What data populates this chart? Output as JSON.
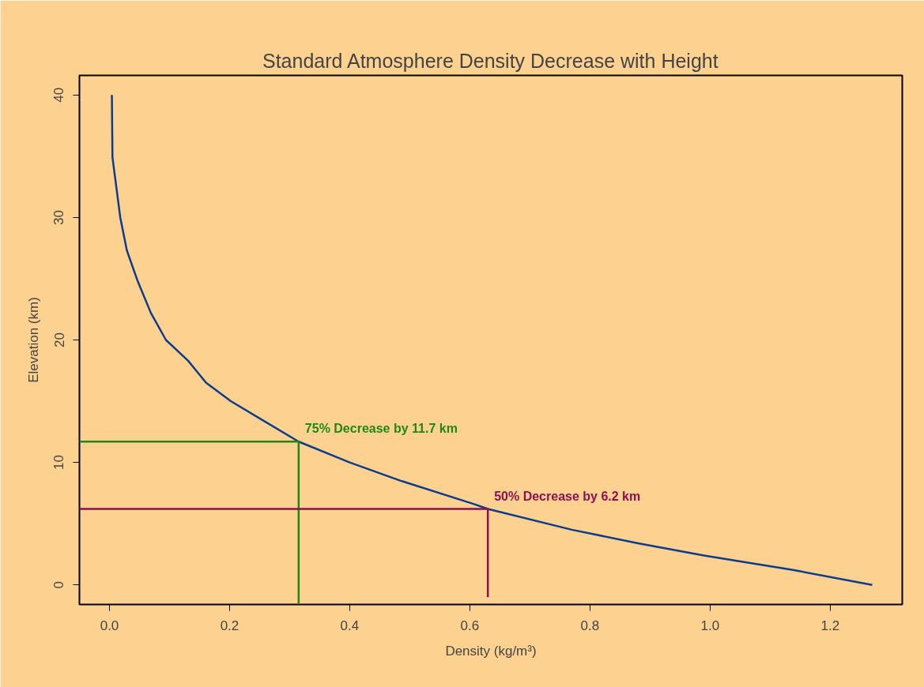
{
  "chart_data": {
    "type": "line",
    "title": "Standard Atmosphere Density Decrease with Height",
    "xlabel": "Density (kg/m³)",
    "ylabel": "Elevation (km)",
    "xlim": [
      -0.05,
      1.32
    ],
    "ylim": [
      -1.6,
      41.6
    ],
    "xticks": [
      {
        "value": 0,
        "label": "0.0"
      },
      0.2,
      0.4,
      0.6,
      0.8,
      {
        "value": 1,
        "label": "1.0"
      },
      1.2
    ],
    "yticks": [
      0,
      10,
      20,
      30,
      40
    ],
    "series": [
      {
        "color": "#0b3d8c",
        "x": [
          1.27,
          1.14,
          0.99,
          0.88,
          0.77,
          0.63,
          0.607,
          0.485,
          0.4,
          0.315,
          0.26,
          0.202,
          0.161,
          0.131,
          0.094,
          0.069,
          0.047,
          0.029,
          0.018,
          0.005,
          0.004
        ],
        "values": [
          0,
          1.2,
          2.4,
          3.4,
          4.5,
          6.2,
          6.6,
          8.5,
          10,
          11.7,
          13.3,
          15,
          16.5,
          18.3,
          20,
          22.2,
          24.8,
          27.3,
          30,
          34.9,
          40
        ]
      },
      {
        "color": "#1e8a14",
        "x": [
          -0.05,
          0.315,
          0.315
        ],
        "values": [
          11.7,
          11.7,
          -1.6
        ]
      },
      {
        "color": "#8b1150",
        "x": [
          -0.05,
          0.63,
          0.63
        ],
        "values": [
          6.2,
          6.2,
          -1.0
        ]
      }
    ],
    "annotations": [
      {
        "text": "75% Decrease by 11.7 km",
        "x": 0.315,
        "y": 11.7
      },
      {
        "text": "50% Decrease by 6.2 km",
        "x": 0.63,
        "y": 6.2
      }
    ]
  }
}
